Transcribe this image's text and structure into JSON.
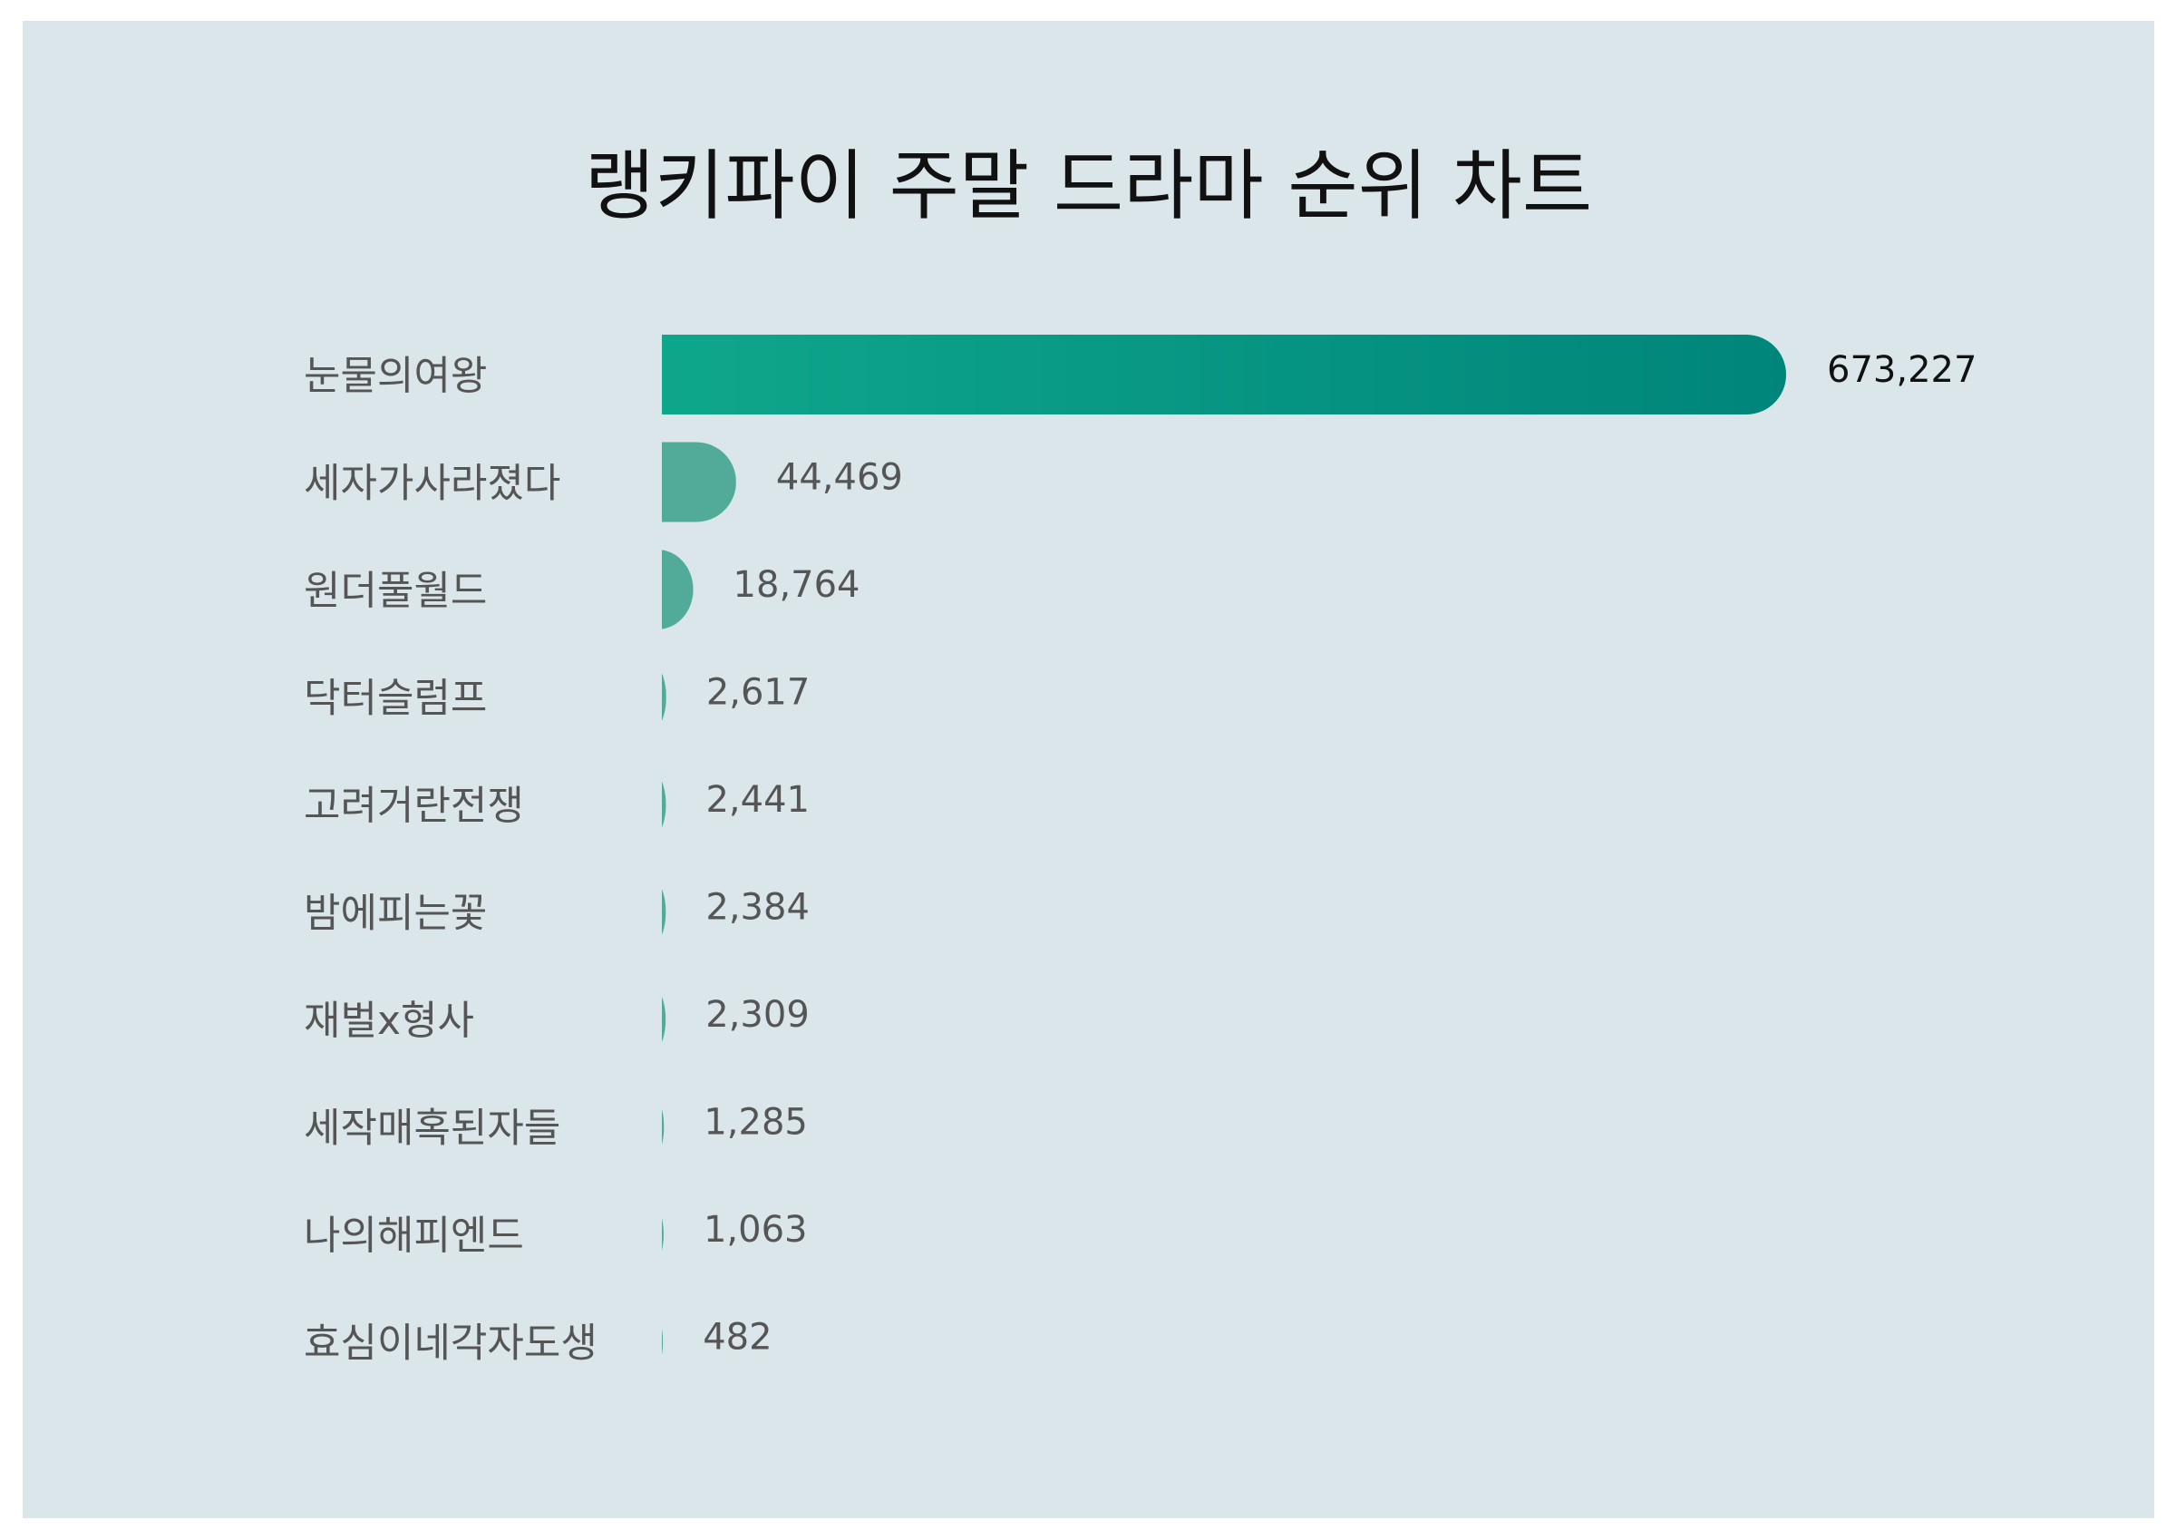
{
  "chart_data": {
    "type": "bar",
    "orientation": "horizontal",
    "title": "랭키파이 주말 드라마 순위 차트",
    "categories": [
      "눈물의여왕",
      "세자가사라졌다",
      "원더풀월드",
      "닥터슬럼프",
      "고려거란전쟁",
      "밤에피는꽃",
      "재벌x형사",
      "세작매혹된자들",
      "나의해피엔드",
      "효심이네각자도생"
    ],
    "values": [
      673227,
      44469,
      18764,
      2617,
      2441,
      2384,
      2309,
      1285,
      1063,
      482
    ],
    "value_labels": [
      "673,227",
      "44,469",
      "18,764",
      "2,617",
      "2,441",
      "2,384",
      "2,309",
      "1,285",
      "1,063",
      "482"
    ],
    "xlim": [
      0,
      673227
    ],
    "grid": false,
    "legend": "none",
    "colors": {
      "top_bar_start": "#0fa88c",
      "top_bar_end": "#00857a",
      "bar": "#52ab98",
      "background": "#dbe6ea"
    }
  }
}
